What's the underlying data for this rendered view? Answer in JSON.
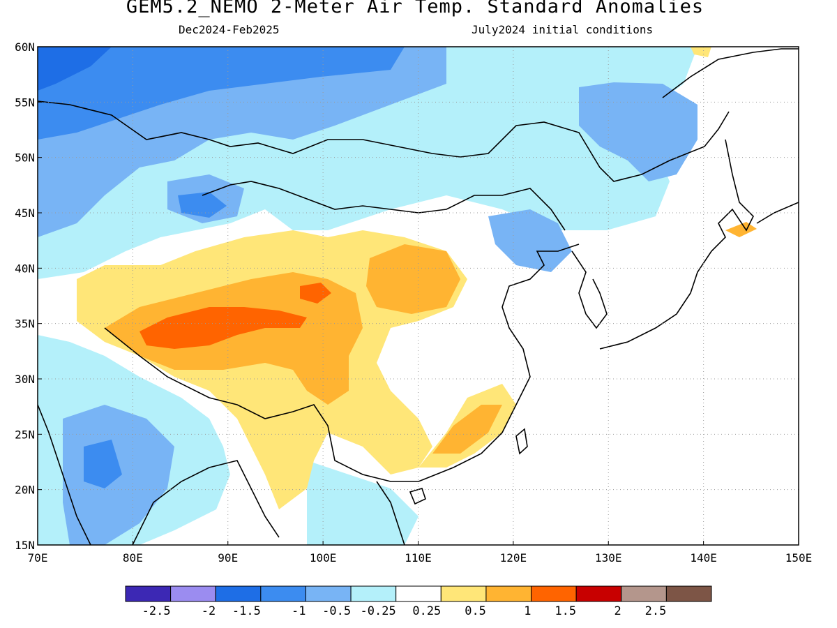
{
  "title": "GEM5.2_NEMO 2-Meter Air Temp. Standard Anomalies",
  "subtitle_left": "Dec2024-Feb2025",
  "subtitle_right": "July2024 initial conditions",
  "map": {
    "lon_range": [
      70,
      150
    ],
    "lat_range": [
      15,
      60
    ],
    "lon_ticks": [
      "70E",
      "80E",
      "90E",
      "100E",
      "110E",
      "120E",
      "130E",
      "140E",
      "150E"
    ],
    "lat_ticks": [
      "15N",
      "20N",
      "25N",
      "30N",
      "35N",
      "40N",
      "45N",
      "50N",
      "55N",
      "60N"
    ],
    "grid": "dotted"
  },
  "colorbar": {
    "colors": [
      "#3c28b4",
      "#9b8cf0",
      "#1e6ee6",
      "#3c8cf0",
      "#78b4f5",
      "#b4f0fa",
      "#ffffff",
      "#ffe678",
      "#ffb432",
      "#ff6400",
      "#c80000",
      "#b4968c",
      "#7d5546"
    ],
    "labels": [
      "-2.5",
      "-2",
      "-1.5",
      "-1",
      "-0.5",
      "-0.25",
      "0.25",
      "0.5",
      "1",
      "1.5",
      "2",
      "2.5"
    ]
  }
}
